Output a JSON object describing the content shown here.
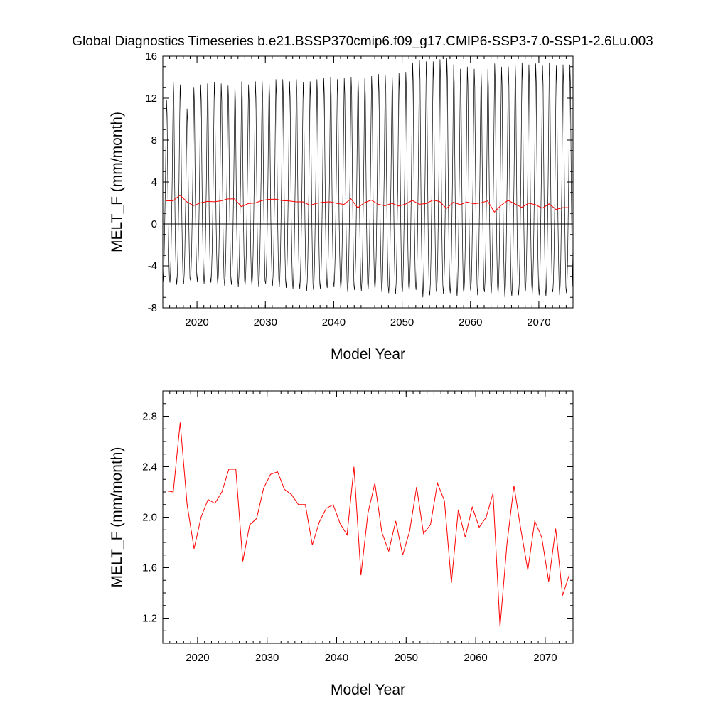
{
  "title": "Global Diagnostics Timeseries b.e21.BSSP370cmip6.f09_g17.CMIP6-SSP3-7.0-SSP1-2.6Lu.003",
  "colors": {
    "monthly": "#000000",
    "annual": "#ff0000",
    "zero_line": "#000000"
  },
  "chart_data": [
    {
      "type": "line",
      "panel": "top",
      "xlabel": "Model Year",
      "ylabel": "MELT_F (mm/month)",
      "xlim": [
        2015,
        2075
      ],
      "ylim": [
        -8,
        16
      ],
      "xticks": [
        2020,
        2030,
        2040,
        2050,
        2060,
        2070
      ],
      "xtick_labels": [
        "2020",
        "2030",
        "2040",
        "2050",
        "2060",
        "2070"
      ],
      "yticks": [
        -8,
        -4,
        0,
        4,
        8,
        12,
        16
      ],
      "ytick_labels": [
        "-8",
        "-4",
        "0",
        "4",
        "8",
        "12",
        "16"
      ],
      "zero_line": true,
      "monthly_pattern": [
        -5.0,
        -4.2,
        -2.5,
        0.5,
        4.0,
        9.0,
        13.0,
        11.5,
        5.5,
        0.5,
        -2.5,
        -4.5
      ],
      "monthly_peak": [
        11.8,
        13.5,
        13.3,
        11.0,
        13.0,
        13.3,
        13.4,
        13.5,
        13.4,
        13.2,
        13.3,
        13.6,
        13.3,
        13.6,
        13.6,
        13.7,
        13.8,
        13.8,
        13.6,
        13.8,
        13.5,
        13.6,
        13.8,
        13.9,
        14.0,
        13.8,
        13.9,
        14.0,
        14.1,
        13.9,
        14.1,
        14.3,
        14.2,
        14.2,
        14.4,
        14.5,
        15.4,
        15.6,
        15.5,
        15.5,
        15.7,
        15.8,
        15.2,
        14.8,
        15.0,
        14.8,
        14.6,
        14.8,
        15.3,
        15.0,
        15.0,
        15.2,
        15.4,
        15.2,
        15.3,
        15.1,
        15.4,
        15.1,
        15.2,
        15.2
      ],
      "monthly_trough": [
        -5.5,
        -5.6,
        -5.8,
        -5.7,
        -5.4,
        -5.5,
        -5.7,
        -5.6,
        -5.8,
        -5.9,
        -5.8,
        -6.0,
        -5.8,
        -5.9,
        -6.0,
        -5.7,
        -5.9,
        -6.0,
        -6.1,
        -6.2,
        -6.2,
        -6.4,
        -6.3,
        -6.2,
        -6.1,
        -6.0,
        -6.3,
        -6.5,
        -6.3,
        -6.4,
        -6.2,
        -6.3,
        -6.5,
        -6.6,
        -6.7,
        -6.5,
        -6.4,
        -6.3,
        -7.0,
        -6.8,
        -6.5,
        -6.7,
        -6.6,
        -6.9,
        -6.6,
        -6.4,
        -6.8,
        -6.5,
        -6.6,
        -6.7,
        -7.0,
        -6.9,
        -6.8,
        -6.4,
        -6.7,
        -6.8,
        -6.9,
        -6.5,
        -6.8,
        -6.6
      ],
      "series": [
        {
          "name": "",
          "resolution": "monthly",
          "color": "#000000"
        },
        {
          "name": "",
          "resolution": "annual",
          "color": "#ff0000"
        }
      ]
    },
    {
      "type": "line",
      "panel": "bottom",
      "xlabel": "Model Year",
      "ylabel": "MELT_F (mm/month)",
      "xlim": [
        2015,
        2074
      ],
      "ylim": [
        1.0,
        3.0
      ],
      "xticks": [
        2020,
        2030,
        2040,
        2050,
        2060,
        2070
      ],
      "xtick_labels": [
        "2020",
        "2030",
        "2040",
        "2050",
        "2060",
        "2070"
      ],
      "yticks": [
        1.2,
        1.6,
        2.0,
        2.4,
        2.8
      ],
      "ytick_labels": [
        "1.2",
        "1.6",
        "2.0",
        "2.4",
        "2.8"
      ],
      "series": [
        {
          "name": "",
          "color": "#ff0000",
          "x": [
            2015.5,
            2016.5,
            2017.5,
            2018.5,
            2019.5,
            2020.5,
            2021.5,
            2022.5,
            2023.5,
            2024.5,
            2025.5,
            2026.5,
            2027.5,
            2028.5,
            2029.5,
            2030.5,
            2031.5,
            2032.5,
            2033.5,
            2034.5,
            2035.5,
            2036.5,
            2037.5,
            2038.5,
            2039.5,
            2040.5,
            2041.5,
            2042.5,
            2043.5,
            2044.5,
            2045.5,
            2046.5,
            2047.5,
            2048.5,
            2049.5,
            2050.5,
            2051.5,
            2052.5,
            2053.5,
            2054.5,
            2055.5,
            2056.5,
            2057.5,
            2058.5,
            2059.5,
            2060.5,
            2061.5,
            2062.5,
            2063.5,
            2064.5,
            2065.5,
            2066.5,
            2067.5,
            2068.5,
            2069.5,
            2070.5,
            2071.5,
            2072.5,
            2073.5,
            2074.5
          ],
          "values": [
            2.21,
            2.2,
            2.75,
            2.1,
            1.75,
            2.0,
            2.14,
            2.11,
            2.2,
            2.38,
            2.38,
            1.65,
            1.94,
            1.99,
            2.23,
            2.34,
            2.36,
            2.22,
            2.18,
            2.1,
            2.1,
            1.78,
            1.96,
            2.07,
            2.1,
            1.95,
            1.86,
            2.4,
            1.54,
            2.03,
            2.27,
            1.88,
            1.73,
            1.97,
            1.7,
            1.89,
            2.24,
            1.87,
            1.94,
            2.27,
            2.13,
            1.48,
            2.06,
            1.84,
            2.08,
            1.92,
            2.0,
            2.19,
            1.13,
            1.79,
            2.25,
            1.9,
            1.58,
            1.97,
            1.84,
            1.49,
            1.91,
            1.38,
            1.55,
            1.55
          ]
        }
      ]
    }
  ]
}
